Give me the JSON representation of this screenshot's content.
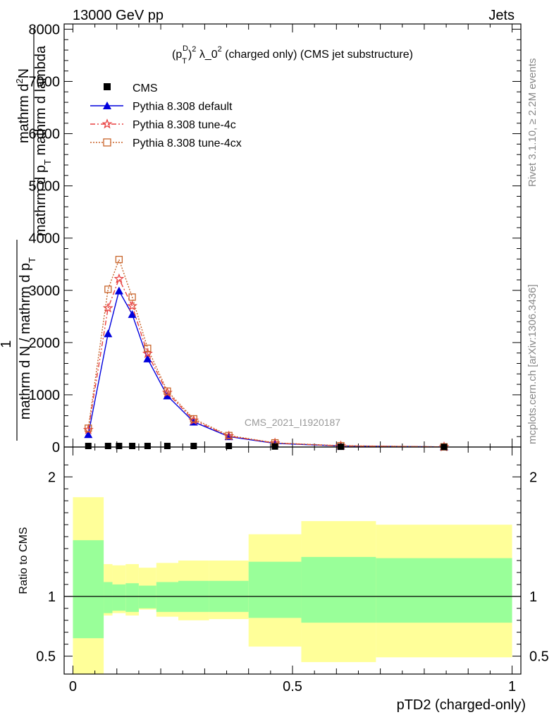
{
  "header": {
    "left": "13000 GeV pp",
    "right": "Jets"
  },
  "side_labels": {
    "rivet": "Rivet 3.1.10, ≥ 2.2M events",
    "mcplots": "mcplots.cern.ch [arXiv:1306.3436]"
  },
  "chart_data": {
    "type": "line",
    "title": "(p_T^D)^2 λ_0^2 (charged only) (CMS jet substructure)",
    "title_parts": {
      "a": "(p",
      "sub": "T",
      "sup": "D",
      "b": ")",
      "sup2": "2",
      "c": " λ_0",
      "sup3": "2",
      "d": " (charged only) (CMS jet substructure)"
    },
    "watermark": "CMS_2021_I1920187",
    "xlabel": "pTD2 (charged-only)",
    "ylabel_top": {
      "num": "mathrm d²N",
      "den": "mathrm d p_T mathrm d lambda",
      "num_prefix": "mathrm d",
      "num_sup": "2",
      "num_suffix": "N",
      "den_a": "mathrm d p",
      "den_sub": "T",
      "den_b": " mathrm d lambda"
    },
    "ylabel_frac": {
      "one": "1",
      "den_a": "mathrm d N / mathrm d p",
      "den_sub": "T"
    },
    "ratio_ylabel": "Ratio to CMS",
    "xlim": [
      -0.02,
      1.02
    ],
    "ylim": [
      0,
      8100
    ],
    "ratio_ylim": [
      0.35,
      2.25
    ],
    "xticks": [
      {
        "v": 0,
        "label": "0"
      },
      {
        "v": 0.5,
        "label": "0.5"
      },
      {
        "v": 1,
        "label": "1"
      }
    ],
    "yticks": [
      {
        "v": 0,
        "label": "0"
      },
      {
        "v": 1000,
        "label": "1000"
      },
      {
        "v": 2000,
        "label": "2000"
      },
      {
        "v": 3000,
        "label": "3000"
      },
      {
        "v": 4000,
        "label": "4000"
      },
      {
        "v": 5000,
        "label": "5000"
      },
      {
        "v": 6000,
        "label": "6000"
      },
      {
        "v": 7000,
        "label": "7000"
      },
      {
        "v": 8000,
        "label": "8000"
      }
    ],
    "ratio_yticks": [
      {
        "v": 0.5,
        "label": "0.5"
      },
      {
        "v": 1,
        "label": "1"
      },
      {
        "v": 2,
        "label": "2"
      }
    ],
    "cms": {
      "name": "CMS",
      "x": [
        0.035,
        0.08,
        0.105,
        0.135,
        0.17,
        0.215,
        0.275,
        0.355,
        0.46,
        0.61,
        0.845
      ],
      "y": [
        20,
        20,
        20,
        20,
        20,
        20,
        20,
        20,
        10,
        5,
        2
      ]
    },
    "series": [
      {
        "name": "Pythia 8.308 default",
        "color": "#0000dd",
        "marker": "triangle",
        "dash": "",
        "x": [
          0.035,
          0.08,
          0.105,
          0.135,
          0.17,
          0.215,
          0.275,
          0.355,
          0.46,
          0.61,
          0.845
        ],
        "y": [
          240,
          2170,
          2990,
          2540,
          1690,
          980,
          480,
          200,
          70,
          20,
          3
        ]
      },
      {
        "name": "Pythia 8.308 tune-4c",
        "color": "#e84040",
        "marker": "star",
        "dash": "7,3,2,3",
        "x": [
          0.035,
          0.08,
          0.105,
          0.135,
          0.17,
          0.215,
          0.275,
          0.355,
          0.46,
          0.61,
          0.845
        ],
        "y": [
          330,
          2660,
          3220,
          2700,
          1790,
          1040,
          510,
          210,
          75,
          22,
          3
        ]
      },
      {
        "name": "Pythia 8.308 tune-4cx",
        "color": "#c8642a",
        "marker": "square-open",
        "dash": "2,2",
        "x": [
          0.035,
          0.08,
          0.105,
          0.135,
          0.17,
          0.215,
          0.275,
          0.355,
          0.46,
          0.61,
          0.845
        ],
        "y": [
          360,
          3020,
          3590,
          2870,
          1890,
          1070,
          540,
          220,
          80,
          25,
          3
        ]
      }
    ],
    "bands": {
      "edges": [
        0,
        0.07,
        0.09,
        0.12,
        0.15,
        0.19,
        0.24,
        0.31,
        0.4,
        0.52,
        0.69,
        1.0
      ],
      "stat_lo": [
        0.65,
        0.86,
        0.88,
        0.87,
        0.9,
        0.87,
        0.87,
        0.87,
        0.82,
        0.78,
        0.78
      ],
      "stat_hi": [
        1.47,
        1.12,
        1.1,
        1.11,
        1.09,
        1.12,
        1.13,
        1.13,
        1.29,
        1.33,
        1.32
      ],
      "tot_lo": [
        0.35,
        0.84,
        0.86,
        0.84,
        0.89,
        0.83,
        0.8,
        0.81,
        0.58,
        0.45,
        0.49
      ],
      "tot_hi": [
        1.83,
        1.27,
        1.26,
        1.27,
        1.24,
        1.28,
        1.3,
        1.3,
        1.52,
        1.63,
        1.6
      ],
      "stat_color": "#99ff99",
      "tot_color": "#ffff99"
    }
  }
}
